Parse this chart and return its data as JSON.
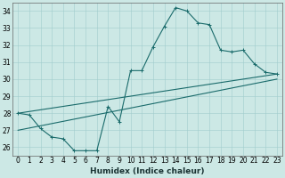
{
  "xlabel": "Humidex (Indice chaleur)",
  "bg_color": "#cce8e5",
  "grid_color": "#a0cccc",
  "line_color": "#1a6b6b",
  "xlim": [
    -0.5,
    23.5
  ],
  "ylim": [
    25.5,
    34.5
  ],
  "xticks": [
    0,
    1,
    2,
    3,
    4,
    5,
    6,
    7,
    8,
    9,
    10,
    11,
    12,
    13,
    14,
    15,
    16,
    17,
    18,
    19,
    20,
    21,
    22,
    23
  ],
  "yticks": [
    26,
    27,
    28,
    29,
    30,
    31,
    32,
    33,
    34
  ],
  "curve_x": [
    0,
    1,
    2,
    3,
    4,
    5,
    6,
    7,
    8,
    9,
    10,
    11,
    12,
    13,
    14,
    15,
    16,
    17,
    18,
    19,
    20,
    21,
    22,
    23
  ],
  "curve_y": [
    28.0,
    27.9,
    27.1,
    26.6,
    26.5,
    25.8,
    25.8,
    25.8,
    28.4,
    27.5,
    30.5,
    30.5,
    31.9,
    33.1,
    34.2,
    34.0,
    33.3,
    33.2,
    31.7,
    31.6,
    31.7,
    30.9,
    30.4,
    30.3
  ],
  "upper_line_x": [
    0,
    23
  ],
  "upper_line_y": [
    28.0,
    30.3
  ],
  "lower_line_x": [
    0,
    23
  ],
  "lower_line_y": [
    27.0,
    30.0
  ],
  "marker_size": 3.5,
  "linewidth": 0.8,
  "xlabel_fontsize": 6.5,
  "tick_fontsize": 5.5
}
